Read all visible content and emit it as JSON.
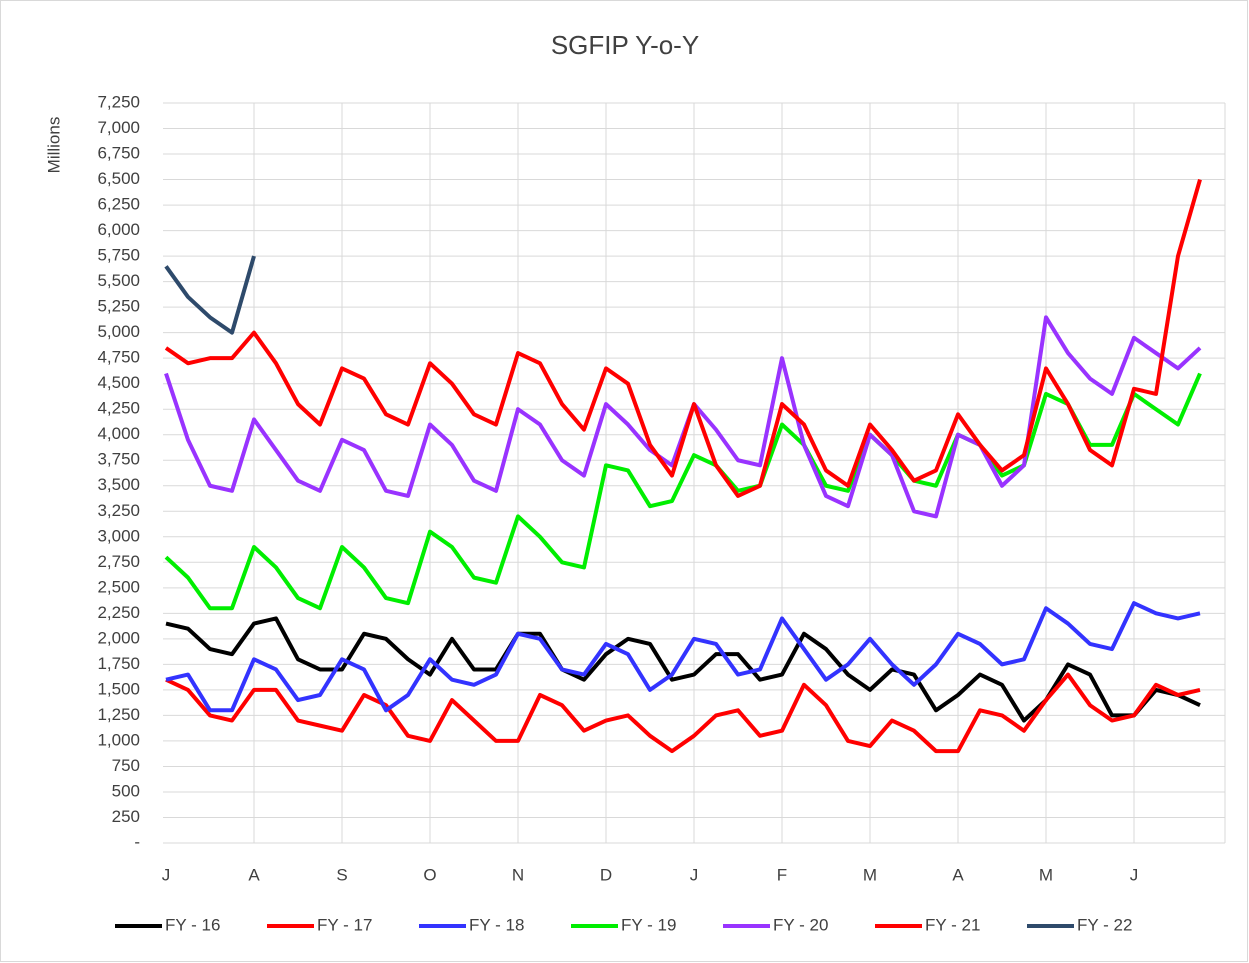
{
  "chart_data": {
    "type": "line",
    "title": "SGFIP Y-o-Y",
    "y_label": "Millions",
    "categories": [
      "J",
      null,
      null,
      null,
      "A",
      null,
      null,
      null,
      "S",
      null,
      null,
      null,
      "O",
      null,
      null,
      null,
      "N",
      null,
      null,
      null,
      "D",
      null,
      null,
      null,
      "J",
      null,
      null,
      null,
      "F",
      null,
      null,
      null,
      "M",
      null,
      null,
      null,
      "A",
      null,
      null,
      null,
      "M",
      null,
      null,
      null,
      "J",
      null,
      null,
      null
    ],
    "ylim": [
      0,
      7250
    ],
    "yticks": [
      {
        "value": 0,
        "label": "-"
      },
      250,
      500,
      750,
      {
        "value": 1000,
        "label": "1,000"
      },
      {
        "value": 1250,
        "label": "1,250"
      },
      {
        "value": 1500,
        "label": "1,500"
      },
      {
        "value": 1750,
        "label": "1,750"
      },
      {
        "value": 2000,
        "label": "2,000"
      },
      {
        "value": 2250,
        "label": "2,250"
      },
      {
        "value": 2500,
        "label": "2,500"
      },
      {
        "value": 2750,
        "label": "2,750"
      },
      {
        "value": 3000,
        "label": "3,000"
      },
      {
        "value": 3250,
        "label": "3,250"
      },
      {
        "value": 3500,
        "label": "3,500"
      },
      {
        "value": 3750,
        "label": "3,750"
      },
      {
        "value": 4000,
        "label": "4,000"
      },
      {
        "value": 4250,
        "label": "4,250"
      },
      {
        "value": 4500,
        "label": "4,500"
      },
      {
        "value": 4750,
        "label": "4,750"
      },
      {
        "value": 5000,
        "label": "5,000"
      },
      {
        "value": 5250,
        "label": "5,250"
      },
      {
        "value": 5500,
        "label": "5,500"
      },
      {
        "value": 5750,
        "label": "5,750"
      },
      {
        "value": 6000,
        "label": "6,000"
      },
      {
        "value": 6250,
        "label": "6,250"
      },
      {
        "value": 6500,
        "label": "6,500"
      },
      {
        "value": 6750,
        "label": "6,750"
      },
      {
        "value": 7000,
        "label": "7,000"
      },
      {
        "value": 7250,
        "label": "7,250"
      }
    ],
    "grid": true,
    "legend": "bottom",
    "series": [
      {
        "name": "FY - 16",
        "color": "#000000",
        "values": [
          2150,
          2100,
          1900,
          1850,
          2150,
          2200,
          1800,
          1700,
          1700,
          2050,
          2000,
          1800,
          1650,
          2000,
          1700,
          1700,
          2050,
          2050,
          1700,
          1600,
          1850,
          2000,
          1950,
          1600,
          1650,
          1850,
          1850,
          1600,
          1650,
          2050,
          1900,
          1650,
          1500,
          1700,
          1650,
          1300,
          1450,
          1650,
          1550,
          1200,
          1400,
          1750,
          1650,
          1250,
          1250,
          1500,
          1450,
          1350
        ]
      },
      {
        "name": "FY - 17",
        "color": "#ff0000",
        "values": [
          1600,
          1500,
          1250,
          1200,
          1500,
          1500,
          1200,
          1150,
          1100,
          1450,
          1350,
          1050,
          1000,
          1400,
          1200,
          1000,
          1000,
          1450,
          1350,
          1100,
          1200,
          1250,
          1050,
          900,
          1050,
          1250,
          1300,
          1050,
          1100,
          1550,
          1350,
          1000,
          950,
          1200,
          1100,
          900,
          900,
          1300,
          1250,
          1100,
          1400,
          1650,
          1350,
          1200,
          1250,
          1550,
          1450,
          1500
        ]
      },
      {
        "name": "FY - 18",
        "color": "#3333ff",
        "values": [
          1600,
          1650,
          1300,
          1300,
          1800,
          1700,
          1400,
          1450,
          1800,
          1700,
          1300,
          1450,
          1800,
          1600,
          1550,
          1650,
          2050,
          2000,
          1700,
          1650,
          1950,
          1850,
          1500,
          1650,
          2000,
          1950,
          1650,
          1700,
          2200,
          1900,
          1600,
          1750,
          2000,
          1750,
          1550,
          1750,
          2050,
          1950,
          1750,
          1800,
          2300,
          2150,
          1950,
          1900,
          2350,
          2250,
          2200,
          2250
        ]
      },
      {
        "name": "FY - 19",
        "color": "#00ee00",
        "values": [
          2800,
          2600,
          2300,
          2300,
          2900,
          2700,
          2400,
          2300,
          2900,
          2700,
          2400,
          2350,
          3050,
          2900,
          2600,
          2550,
          3200,
          3000,
          2750,
          2700,
          3700,
          3650,
          3300,
          3350,
          3800,
          3700,
          3450,
          3500,
          4100,
          3900,
          3500,
          3450,
          4000,
          3800,
          3550,
          3500,
          4000,
          3900,
          3600,
          3700,
          4400,
          4300,
          3900,
          3900,
          4400,
          4250,
          4100,
          4600
        ]
      },
      {
        "name": "FY - 20",
        "color": "#9933ff",
        "values": [
          4600,
          3950,
          3500,
          3450,
          4150,
          3850,
          3550,
          3450,
          3950,
          3850,
          3450,
          3400,
          4100,
          3900,
          3550,
          3450,
          4250,
          4100,
          3750,
          3600,
          4300,
          4100,
          3850,
          3700,
          4300,
          4050,
          3750,
          3700,
          4750,
          3900,
          3400,
          3300,
          4000,
          3800,
          3250,
          3200,
          4000,
          3900,
          3500,
          3700,
          5150,
          4800,
          4550,
          4400,
          4950,
          4800,
          4650,
          4850
        ]
      },
      {
        "name": "FY - 21",
        "color": "#ff0000",
        "values": [
          4850,
          4700,
          4750,
          4750,
          5000,
          4700,
          4300,
          4100,
          4650,
          4550,
          4200,
          4100,
          4700,
          4500,
          4200,
          4100,
          4800,
          4700,
          4300,
          4050,
          4650,
          4500,
          3900,
          3600,
          4300,
          3700,
          3400,
          3500,
          4300,
          4100,
          3650,
          3500,
          4100,
          3850,
          3550,
          3650,
          4200,
          3900,
          3650,
          3800,
          4650,
          4300,
          3850,
          3700,
          4450,
          4400,
          5750,
          6500
        ]
      },
      {
        "name": "FY - 22",
        "color": "#2e4a6b",
        "values": [
          5650,
          5350,
          5150,
          5000,
          5750,
          null,
          null,
          null,
          null,
          null,
          null,
          null,
          null,
          null,
          null,
          null,
          null,
          null,
          null,
          null,
          null,
          null,
          null,
          null,
          null,
          null,
          null,
          null,
          null,
          null,
          null,
          null,
          null,
          null,
          null,
          null,
          null,
          null,
          null,
          null,
          null,
          null,
          null,
          null,
          null,
          null,
          null,
          null
        ]
      }
    ]
  }
}
